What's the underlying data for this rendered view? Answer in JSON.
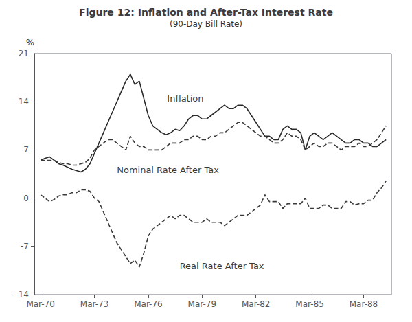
{
  "chart_data": {
    "type": "line",
    "title": "Figure 12: Inflation and After-Tax Interest Rate",
    "subtitle": "(90-Day Bill Rate)",
    "ylabel": "%",
    "xlim": [
      1969.9,
      1989.8
    ],
    "xticks": [
      {
        "value": 1970.25,
        "label": "Mar-70"
      },
      {
        "value": 1973.25,
        "label": "Mar-73"
      },
      {
        "value": 1976.25,
        "label": "Mar-76"
      },
      {
        "value": 1979.25,
        "label": "Mar-79"
      },
      {
        "value": 1982.25,
        "label": "Mar-82"
      },
      {
        "value": 1985.25,
        "label": "Mar-85"
      },
      {
        "value": 1988.25,
        "label": "Mar-88"
      }
    ],
    "ylim": [
      -14,
      21
    ],
    "yticks": [
      -14,
      -7,
      0,
      7,
      14,
      21
    ],
    "grid": false,
    "x": [
      1970.25,
      1970.5,
      1970.75,
      1971.0,
      1971.25,
      1971.5,
      1971.75,
      1972.0,
      1972.25,
      1972.5,
      1972.75,
      1973.0,
      1973.25,
      1973.5,
      1973.75,
      1974.0,
      1974.25,
      1974.5,
      1974.75,
      1975.0,
      1975.25,
      1975.5,
      1975.75,
      1976.0,
      1976.25,
      1976.5,
      1976.75,
      1977.0,
      1977.25,
      1977.5,
      1977.75,
      1978.0,
      1978.25,
      1978.5,
      1978.75,
      1979.0,
      1979.25,
      1979.5,
      1979.75,
      1980.0,
      1980.25,
      1980.5,
      1980.75,
      1981.0,
      1981.25,
      1981.5,
      1981.75,
      1982.0,
      1982.25,
      1982.5,
      1982.75,
      1983.0,
      1983.25,
      1983.5,
      1983.75,
      1984.0,
      1984.25,
      1984.5,
      1984.75,
      1985.0,
      1985.25,
      1985.5,
      1985.75,
      1986.0,
      1986.25,
      1986.5,
      1986.75,
      1987.0,
      1987.25,
      1987.5,
      1987.75,
      1988.0,
      1988.25,
      1988.5,
      1988.75,
      1989.0,
      1989.25,
      1989.5
    ],
    "series": [
      {
        "color": "#2a2a2a",
        "line_style": "solid",
        "values": [
          5.5,
          5.8,
          6.0,
          5.5,
          5.0,
          4.8,
          4.5,
          4.2,
          4.0,
          3.8,
          4.2,
          5.0,
          6.5,
          8.0,
          9.5,
          11.0,
          12.5,
          14.0,
          15.5,
          17.0,
          18.0,
          16.5,
          17.0,
          14.5,
          12.0,
          10.5,
          10.0,
          9.5,
          9.2,
          9.5,
          10.0,
          9.8,
          10.5,
          11.5,
          12.0,
          12.0,
          11.5,
          11.5,
          12.0,
          12.5,
          13.0,
          13.5,
          13.0,
          13.0,
          13.5,
          13.5,
          13.0,
          12.0,
          11.0,
          10.0,
          9.0,
          9.0,
          8.5,
          8.5,
          10.0,
          10.5,
          10.0,
          10.0,
          9.5,
          7.0,
          9.0,
          9.5,
          9.0,
          8.5,
          9.0,
          9.5,
          9.0,
          8.5,
          8.0,
          8.0,
          8.5,
          8.5,
          8.0,
          8.0,
          7.5,
          7.5,
          8.0,
          8.5
        ]
      },
      {
        "color": "#3a3a3a",
        "line_style": "dashed",
        "values": [
          5.5,
          5.5,
          5.5,
          5.5,
          5.2,
          5.0,
          5.0,
          4.8,
          4.8,
          5.0,
          5.2,
          5.8,
          7.0,
          7.5,
          8.0,
          8.5,
          8.5,
          8.0,
          7.5,
          7.0,
          9.0,
          8.0,
          7.5,
          7.5,
          7.0,
          7.0,
          7.0,
          7.0,
          7.5,
          8.0,
          8.0,
          8.0,
          8.5,
          8.5,
          9.0,
          9.0,
          8.5,
          8.5,
          9.0,
          9.0,
          9.5,
          9.5,
          10.0,
          10.5,
          11.0,
          11.0,
          10.5,
          10.0,
          9.5,
          9.0,
          9.0,
          8.5,
          8.0,
          8.0,
          8.5,
          9.5,
          9.0,
          9.0,
          8.5,
          7.0,
          7.5,
          8.0,
          7.5,
          7.5,
          8.0,
          8.0,
          7.5,
          7.0,
          7.5,
          7.5,
          7.5,
          8.0,
          7.5,
          7.5,
          8.0,
          8.5,
          9.5,
          10.5
        ]
      },
      {
        "color": "#3a3a3a",
        "line_style": "dashed",
        "values": [
          0.5,
          0.0,
          -0.5,
          -0.2,
          0.3,
          0.5,
          0.5,
          0.8,
          0.8,
          1.2,
          1.2,
          1.0,
          0.0,
          -0.5,
          -2.0,
          -3.5,
          -5.0,
          -6.5,
          -7.5,
          -8.5,
          -9.5,
          -9.0,
          -10.0,
          -8.0,
          -5.5,
          -4.5,
          -4.0,
          -3.5,
          -3.0,
          -2.5,
          -3.0,
          -2.5,
          -2.5,
          -3.0,
          -3.5,
          -3.5,
          -3.5,
          -3.0,
          -3.5,
          -3.5,
          -3.5,
          -4.0,
          -3.5,
          -3.0,
          -2.5,
          -2.5,
          -2.5,
          -2.0,
          -1.5,
          -1.0,
          0.5,
          -0.5,
          -0.5,
          -0.5,
          -1.5,
          -0.8,
          -0.8,
          -0.8,
          -0.8,
          0.0,
          -1.5,
          -1.5,
          -1.5,
          -1.0,
          -1.0,
          -1.5,
          -1.5,
          -1.5,
          -0.5,
          -0.5,
          -1.0,
          -0.8,
          -0.8,
          -0.3,
          -0.3,
          0.8,
          1.5,
          2.5
        ]
      }
    ],
    "annotations": [
      {
        "x": 1977.3,
        "y": 13.8,
        "text": "Inflation"
      },
      {
        "x": 1974.5,
        "y": 3.5,
        "text": "Nominal Rate After Tax"
      },
      {
        "x": 1978.0,
        "y": -10.5,
        "text": "Real Rate After Tax"
      }
    ]
  }
}
